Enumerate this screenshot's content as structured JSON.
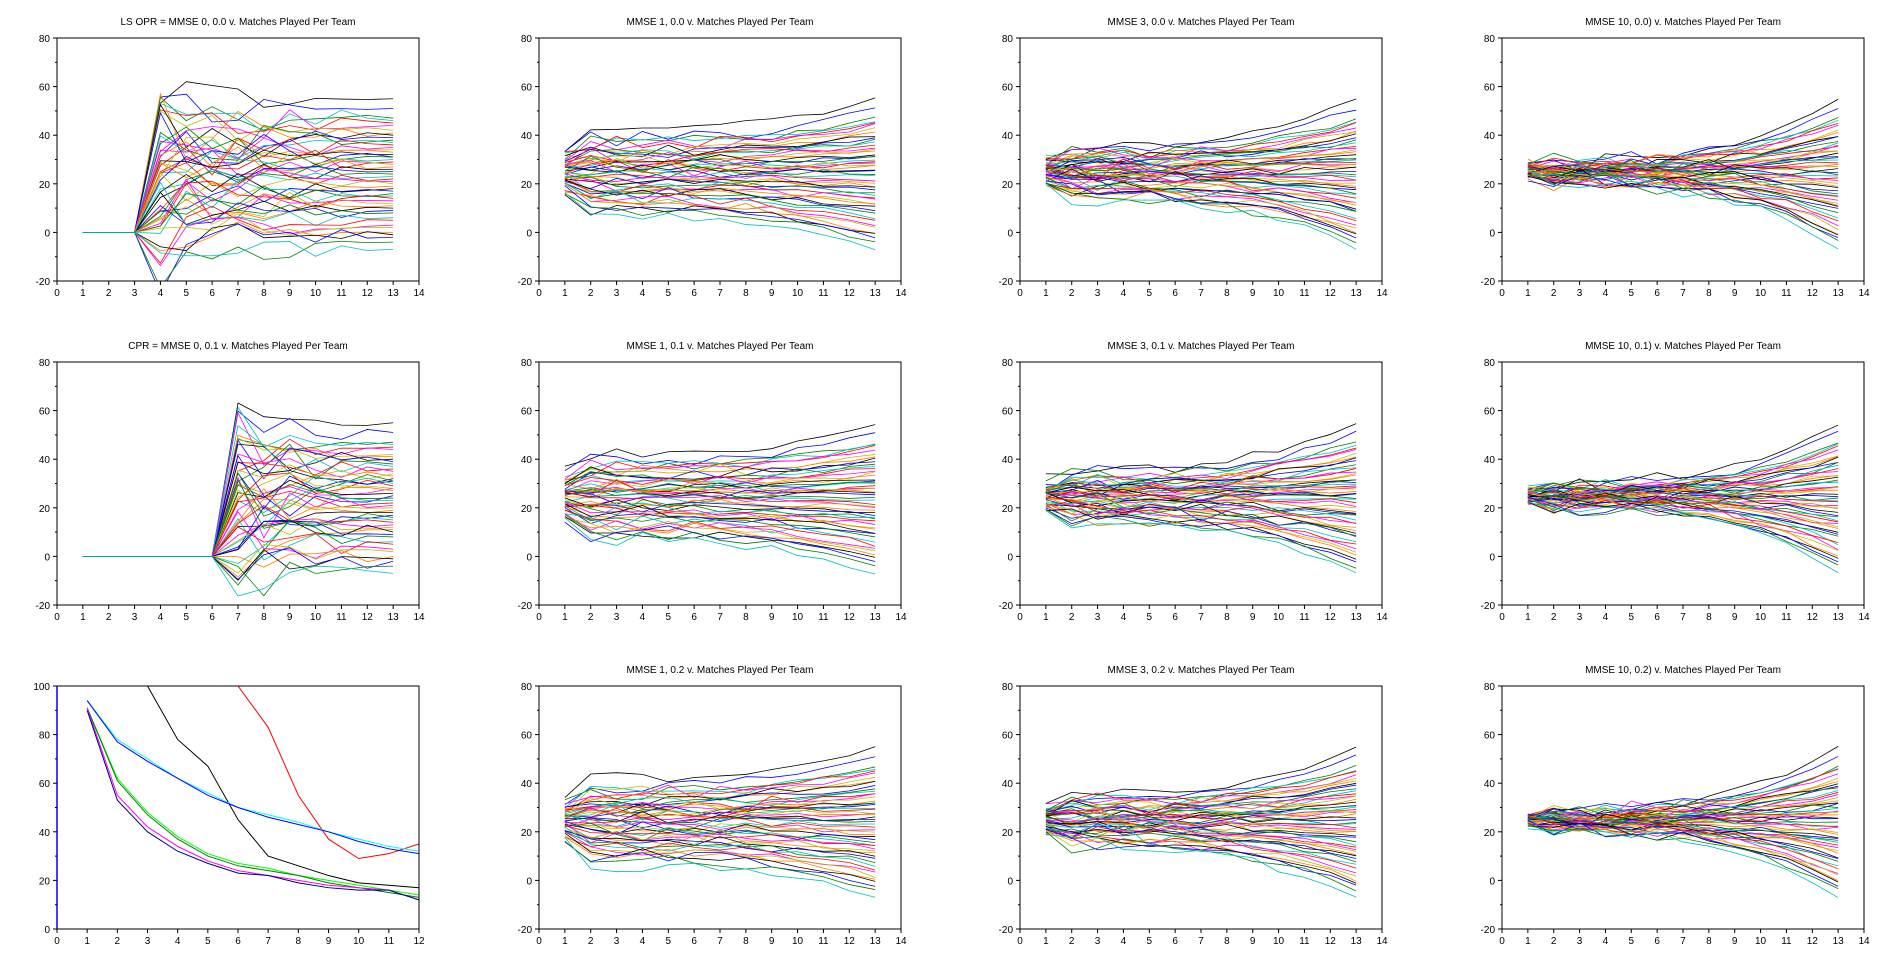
{
  "chart_data": [
    {
      "title": "LS OPR = MMSE 0, 0.0 v. Matches Played Per Team",
      "type": "line",
      "xlim": [
        0,
        14
      ],
      "ylim": [
        -20,
        80
      ],
      "xticks": [
        0,
        1,
        2,
        3,
        4,
        5,
        6,
        7,
        8,
        9,
        10,
        11,
        12,
        13,
        14
      ],
      "yticks": [
        -20,
        0,
        20,
        40,
        60,
        80
      ],
      "grid": false,
      "x_start": 3,
      "spread": 1.0,
      "baseline_start": 1
    },
    {
      "title": "MMSE 1, 0.0 v. Matches Played Per Team",
      "type": "line",
      "xlim": [
        0,
        14
      ],
      "ylim": [
        -20,
        80
      ],
      "xticks": [
        0,
        1,
        2,
        3,
        4,
        5,
        6,
        7,
        8,
        9,
        10,
        11,
        12,
        13,
        14
      ],
      "yticks": [
        -20,
        0,
        20,
        40,
        60,
        80
      ],
      "grid": false,
      "x_start": 1,
      "spread": 0.55
    },
    {
      "title": "MMSE 3, 0.0 v. Matches Played Per Team",
      "type": "line",
      "xlim": [
        0,
        14
      ],
      "ylim": [
        -20,
        80
      ],
      "xticks": [
        0,
        1,
        2,
        3,
        4,
        5,
        6,
        7,
        8,
        9,
        10,
        11,
        12,
        13,
        14
      ],
      "yticks": [
        -20,
        0,
        20,
        40,
        60,
        80
      ],
      "grid": false,
      "x_start": 1,
      "spread": 0.35
    },
    {
      "title": "MMSE 10, 0.0) v. Matches Played Per Team",
      "type": "line",
      "xlim": [
        0,
        14
      ],
      "ylim": [
        -20,
        80
      ],
      "xticks": [
        0,
        1,
        2,
        3,
        4,
        5,
        6,
        7,
        8,
        9,
        10,
        11,
        12,
        13,
        14
      ],
      "yticks": [
        -20,
        0,
        20,
        40,
        60,
        80
      ],
      "grid": false,
      "x_start": 1,
      "spread": 0.15
    },
    {
      "title": "CPR = MMSE 0, 0.1 v. Matches Played Per Team",
      "type": "line",
      "xlim": [
        0,
        14
      ],
      "ylim": [
        -20,
        80
      ],
      "xticks": [
        0,
        1,
        2,
        3,
        4,
        5,
        6,
        7,
        8,
        9,
        10,
        11,
        12,
        13,
        14
      ],
      "yticks": [
        -20,
        0,
        20,
        40,
        60,
        80
      ],
      "grid": false,
      "x_start": 6,
      "spread": 1.0,
      "baseline_start": 1
    },
    {
      "title": "MMSE 1, 0.1 v. Matches Played Per Team",
      "type": "line",
      "xlim": [
        0,
        14
      ],
      "ylim": [
        -20,
        80
      ],
      "xticks": [
        0,
        1,
        2,
        3,
        4,
        5,
        6,
        7,
        8,
        9,
        10,
        11,
        12,
        13,
        14
      ],
      "yticks": [
        -20,
        0,
        20,
        40,
        60,
        80
      ],
      "grid": false,
      "x_start": 1,
      "spread": 0.55
    },
    {
      "title": "MMSE 3, 0.1 v. Matches Played Per Team",
      "type": "line",
      "xlim": [
        0,
        14
      ],
      "ylim": [
        -20,
        80
      ],
      "xticks": [
        0,
        1,
        2,
        3,
        4,
        5,
        6,
        7,
        8,
        9,
        10,
        11,
        12,
        13,
        14
      ],
      "yticks": [
        -20,
        0,
        20,
        40,
        60,
        80
      ],
      "grid": false,
      "x_start": 1,
      "spread": 0.35
    },
    {
      "title": "MMSE 10, 0.1) v. Matches Played Per Team",
      "type": "line",
      "xlim": [
        0,
        14
      ],
      "ylim": [
        -20,
        80
      ],
      "xticks": [
        0,
        1,
        2,
        3,
        4,
        5,
        6,
        7,
        8,
        9,
        10,
        11,
        12,
        13,
        14
      ],
      "yticks": [
        -20,
        0,
        20,
        40,
        60,
        80
      ],
      "grid": false,
      "x_start": 1,
      "spread": 0.15
    },
    {
      "title": "",
      "type": "line",
      "xlim": [
        0,
        12
      ],
      "ylim": [
        0,
        100
      ],
      "xticks": [
        0,
        1,
        2,
        3,
        4,
        5,
        6,
        7,
        8,
        9,
        10,
        11,
        12
      ],
      "yticks": [
        0,
        20,
        40,
        60,
        80,
        100
      ],
      "grid": false,
      "x": [
        1,
        2,
        3,
        4,
        5,
        6,
        7,
        8,
        9,
        10,
        11,
        12
      ],
      "series": [
        {
          "color": "#ff0000",
          "values": [
            100,
            100,
            100,
            100,
            100,
            100,
            83,
            55,
            37,
            29,
            31,
            35
          ]
        },
        {
          "color": "#000000",
          "values": [
            100,
            100,
            100,
            78,
            67,
            45,
            30,
            26,
            22,
            19,
            18,
            17
          ]
        },
        {
          "color": "#00ffff",
          "values": [
            94,
            78,
            70,
            62,
            56,
            50,
            47,
            44,
            40,
            37,
            34,
            32
          ]
        },
        {
          "color": "#0000ff",
          "values": [
            94,
            77,
            69,
            62,
            55,
            50,
            46,
            43,
            40,
            36,
            33,
            31
          ]
        },
        {
          "color": "#00ff00",
          "values": [
            91,
            62,
            48,
            38,
            31,
            27,
            25,
            22,
            20,
            18,
            16,
            14
          ]
        },
        {
          "color": "#008000",
          "values": [
            91,
            61,
            47,
            37,
            30,
            26,
            24,
            22,
            19,
            17,
            15,
            13
          ]
        },
        {
          "color": "#ff00ff",
          "values": [
            91,
            55,
            42,
            34,
            28,
            24,
            22,
            20,
            18,
            17,
            16,
            12
          ]
        },
        {
          "color": "#000080",
          "values": [
            90,
            53,
            40,
            32,
            27,
            23,
            22,
            19,
            17,
            16,
            16,
            12
          ]
        }
      ]
    },
    {
      "title": "MMSE 1, 0.2 v. Matches Played Per Team",
      "type": "line",
      "xlim": [
        0,
        14
      ],
      "ylim": [
        -20,
        80
      ],
      "xticks": [
        0,
        1,
        2,
        3,
        4,
        5,
        6,
        7,
        8,
        9,
        10,
        11,
        12,
        13,
        14
      ],
      "yticks": [
        -20,
        0,
        20,
        40,
        60,
        80
      ],
      "grid": false,
      "x_start": 1,
      "spread": 0.55
    },
    {
      "title": "MMSE 3, 0.2 v. Matches Played Per Team",
      "type": "line",
      "xlim": [
        0,
        14
      ],
      "ylim": [
        -20,
        80
      ],
      "xticks": [
        0,
        1,
        2,
        3,
        4,
        5,
        6,
        7,
        8,
        9,
        10,
        11,
        12,
        13,
        14
      ],
      "yticks": [
        -20,
        0,
        20,
        40,
        60,
        80
      ],
      "grid": false,
      "x_start": 1,
      "spread": 0.35
    },
    {
      "title": "MMSE 10, 0.2) v. Matches Played Per Team",
      "type": "line",
      "xlim": [
        0,
        14
      ],
      "ylim": [
        -20,
        80
      ],
      "xticks": [
        0,
        1,
        2,
        3,
        4,
        5,
        6,
        7,
        8,
        9,
        10,
        11,
        12,
        13,
        14
      ],
      "yticks": [
        -20,
        0,
        20,
        40,
        60,
        80
      ],
      "grid": false,
      "x_start": 1,
      "spread": 0.15
    }
  ],
  "team_final_values": [
    55,
    51,
    47,
    46,
    45,
    44,
    42,
    41,
    40,
    39,
    38,
    37,
    36,
    35,
    34,
    33,
    32,
    31,
    31,
    30,
    29,
    28,
    28,
    27,
    26,
    25,
    24,
    23,
    22,
    21,
    20,
    19,
    18,
    17,
    16,
    15,
    14,
    13,
    12,
    11,
    10,
    9,
    8,
    6,
    5,
    3,
    2,
    0,
    -1,
    -2,
    -4,
    -7
  ],
  "series_colors": [
    "#000000",
    "#0000ff",
    "#008000",
    "#00bfbf",
    "#ff0000",
    "#ff00ff",
    "#bfbf00",
    "#ff8000"
  ]
}
